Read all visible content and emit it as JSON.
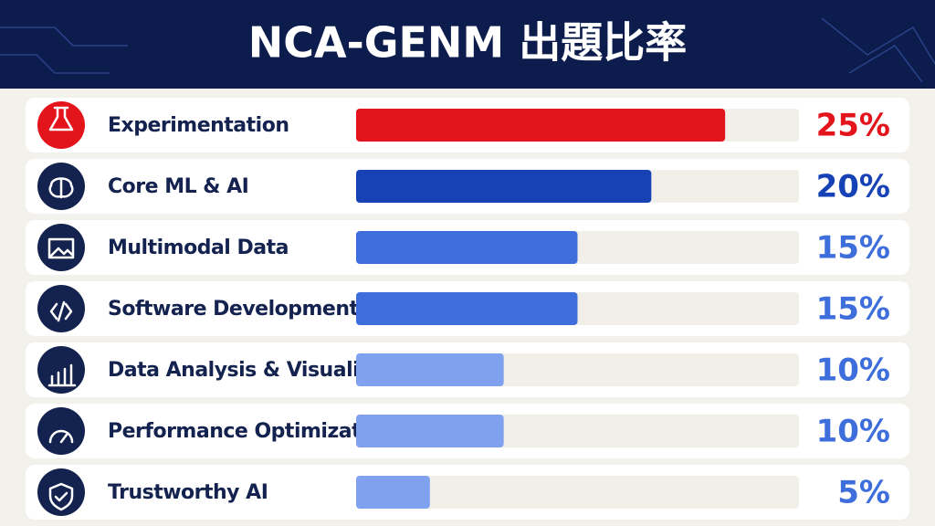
{
  "chart_data": {
    "type": "bar",
    "orientation": "horizontal",
    "title": "NCA-GENM 出題比率",
    "categories": [
      "Experimentation",
      "Core ML & AI",
      "Multimodal Data",
      "Software Development",
      "Data Analysis & Visualization",
      "Performance Optimization",
      "Trustworthy AI"
    ],
    "values": [
      25,
      20,
      15,
      15,
      10,
      10,
      5
    ],
    "value_labels": [
      "25%",
      "20%",
      "15%",
      "15%",
      "10%",
      "10%",
      "5%"
    ],
    "colors": [
      "#e3141b",
      "#1642b5",
      "#3e6ddc",
      "#3e6ddc",
      "#7fa1ee",
      "#7fa1ee",
      "#7fa1ee"
    ],
    "xlim": [
      0,
      30
    ]
  }
}
